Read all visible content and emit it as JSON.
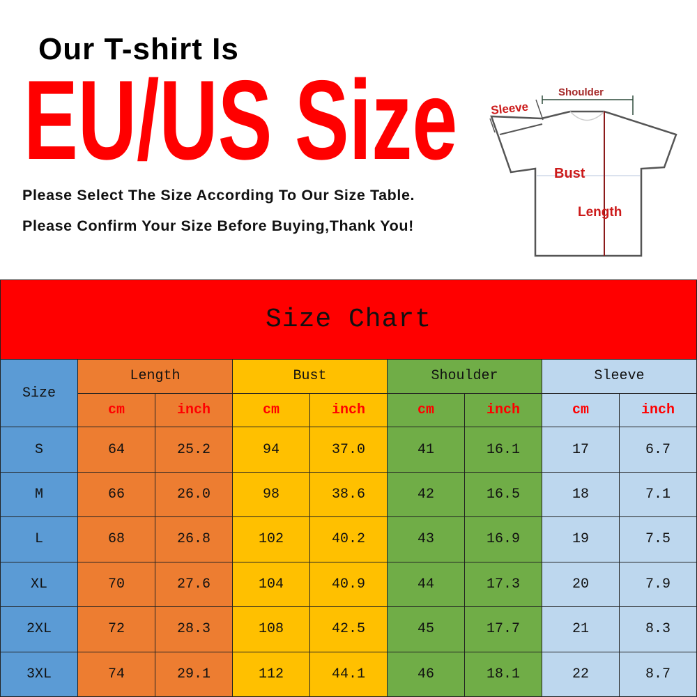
{
  "header": {
    "intro": "Our T-shirt Is",
    "headline": "EU/US Size",
    "line1": "Please Select The Size According To Our Size Table.",
    "line2": "Please Confirm Your Size Before Buying,Thank You!"
  },
  "diagram": {
    "shoulder": "Shoulder",
    "sleeve": "Sleeve",
    "bust": "Bust",
    "length": "Length"
  },
  "colors": {
    "red": "#ff0000",
    "size_col": "#5b9bd5",
    "length_col": "#ed7d31",
    "bust_col": "#ffc000",
    "shoulder_col": "#70ad47",
    "sleeve_col": "#bdd7ee"
  },
  "table": {
    "title": "Size Chart",
    "size_header": "Size",
    "groups": [
      "Length",
      "Bust",
      "Shoulder",
      "Sleeve"
    ],
    "units": [
      "cm",
      "inch",
      "cm",
      "inch",
      "cm",
      "inch",
      "cm",
      "inch"
    ],
    "rows": [
      [
        "S",
        "64",
        "25.2",
        "94",
        "37.0",
        "41",
        "16.1",
        "17",
        "6.7"
      ],
      [
        "M",
        "66",
        "26.0",
        "98",
        "38.6",
        "42",
        "16.5",
        "18",
        "7.1"
      ],
      [
        "L",
        "68",
        "26.8",
        "102",
        "40.2",
        "43",
        "16.9",
        "19",
        "7.5"
      ],
      [
        "XL",
        "70",
        "27.6",
        "104",
        "40.9",
        "44",
        "17.3",
        "20",
        "7.9"
      ],
      [
        "2XL",
        "72",
        "28.3",
        "108",
        "42.5",
        "45",
        "17.7",
        "21",
        "8.3"
      ],
      [
        "3XL",
        "74",
        "29.1",
        "112",
        "44.1",
        "46",
        "18.1",
        "22",
        "8.7"
      ]
    ]
  }
}
